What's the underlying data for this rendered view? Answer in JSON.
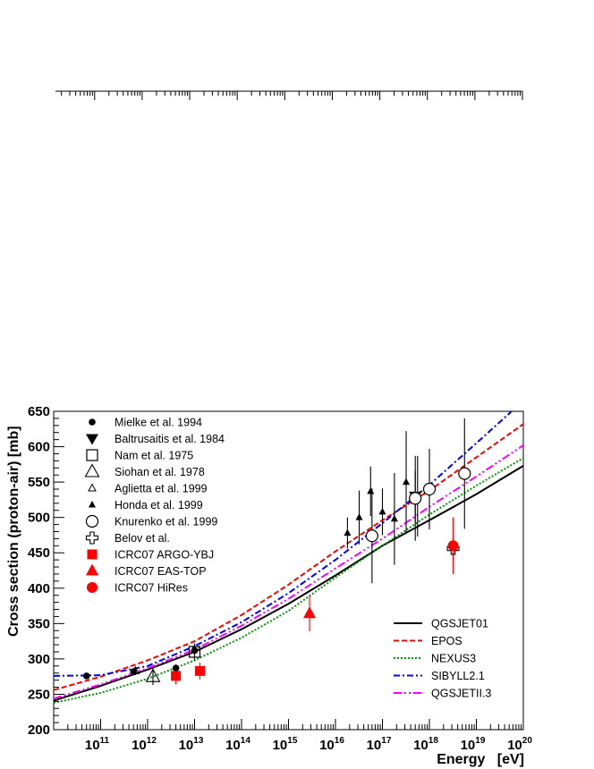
{
  "chart_data": {
    "type": "scatter",
    "title": "",
    "xlabel": "Energy   [eV]",
    "ylabel": "Cross section (proton-air)   [mb]",
    "x_scale": "log",
    "xlim": [
      10000000000.0,
      1e+20
    ],
    "ylim": [
      200,
      650
    ],
    "y_ticks": [
      200,
      250,
      300,
      350,
      400,
      450,
      500,
      550,
      600,
      650
    ],
    "x_ticks": [
      {
        "base": "10",
        "exp": "11",
        "value": 100000000000.0
      },
      {
        "base": "10",
        "exp": "12",
        "value": 1000000000000.0
      },
      {
        "base": "10",
        "exp": "13",
        "value": 10000000000000.0
      },
      {
        "base": "10",
        "exp": "14",
        "value": 100000000000000.0
      },
      {
        "base": "10",
        "exp": "15",
        "value": 1000000000000000.0
      },
      {
        "base": "10",
        "exp": "16",
        "value": 1e+16
      },
      {
        "base": "10",
        "exp": "17",
        "value": 1e+17
      },
      {
        "base": "10",
        "exp": "18",
        "value": 1e+18
      },
      {
        "base": "10",
        "exp": "19",
        "value": 1e+19
      },
      {
        "base": "10",
        "exp": "20",
        "value": 1e+20
      }
    ],
    "grid": false,
    "data_series": [
      {
        "name": "Mielke et al. 1994",
        "marker": "circle-filled-small",
        "color": "#000000",
        "points": [
          {
            "x": 50000000000.0,
            "y": 276,
            "err": 3
          },
          {
            "x": 500000000000.0,
            "y": 282,
            "err": 4
          },
          {
            "x": 4000000000000.0,
            "y": 287,
            "err": 5
          },
          {
            "x": 10000000000000.0,
            "y": 312,
            "err": 10
          }
        ]
      },
      {
        "name": "Baltrusaitis et al. 1984",
        "marker": "triangle-down-filled",
        "color": "#000000",
        "points": [
          {
            "x": 5e+17,
            "y": 530,
            "err": 36
          }
        ]
      },
      {
        "name": "Nam et al. 1975",
        "marker": "square-open",
        "color": "#000000",
        "points": [
          {
            "x": 10000000000000.0,
            "y": 310,
            "err": 12
          }
        ]
      },
      {
        "name": "Siohan et al. 1978",
        "marker": "triangle-open-large",
        "color": "#000000",
        "points": [
          {
            "x": 1300000000000.0,
            "y": 275,
            "err": 12
          }
        ]
      },
      {
        "name": "Aglietta et al. 1999",
        "marker": "triangle-open-small",
        "color": "#000000",
        "points": [
          {
            "x": 550000000000.0,
            "y": 283,
            "err": 6
          }
        ]
      },
      {
        "name": "Honda et al. 1999",
        "marker": "triangle-filled-small",
        "color": "#000000",
        "points": [
          {
            "x": 1.8e+16,
            "y": 478,
            "err": 22
          },
          {
            "x": 3.2e+16,
            "y": 500,
            "err": 38
          },
          {
            "x": 5.6e+16,
            "y": 537,
            "err": 35
          },
          {
            "x": 1e+17,
            "y": 508,
            "err": 33
          },
          {
            "x": 1.8e+17,
            "y": 498,
            "err": 65
          },
          {
            "x": 3.2e+17,
            "y": 550,
            "err": 72
          },
          {
            "x": 5.6e+17,
            "y": 530,
            "err": 57
          }
        ]
      },
      {
        "name": "Knurenko et al. 1999",
        "marker": "circle-open",
        "color": "#000000",
        "points": [
          {
            "x": 6e+16,
            "y": 474,
            "err": 67
          },
          {
            "x": 5e+17,
            "y": 527,
            "err": 60
          },
          {
            "x": 1e+18,
            "y": 540,
            "err": 57
          },
          {
            "x": 5.6e+18,
            "y": 562,
            "err": 78
          }
        ]
      },
      {
        "name": "Belov et al.",
        "marker": "cross-open",
        "color": "#000000",
        "points": [
          {
            "x": 3.2e+18,
            "y": 456,
            "err": 20
          }
        ]
      },
      {
        "name": "ICRC07 ARGO-YBJ",
        "marker": "square-filled",
        "color": "#ff0000",
        "points": [
          {
            "x": 4000000000000.0,
            "y": 276,
            "err": 12
          },
          {
            "x": 13000000000000.0,
            "y": 283,
            "err": 12
          }
        ]
      },
      {
        "name": "ICRC07 EAS-TOP",
        "marker": "triangle-filled",
        "color": "#ff0000",
        "points": [
          {
            "x": 2800000000000000.0,
            "y": 364,
            "err": 25
          }
        ]
      },
      {
        "name": "ICRC07 HiRes",
        "marker": "circle-filled",
        "color": "#ff0000",
        "points": [
          {
            "x": 3.2e+18,
            "y": 460,
            "err": 40
          }
        ]
      }
    ],
    "model_curves": [
      {
        "name": "QGSJET01",
        "color": "#000000",
        "dash": "solid",
        "points": [
          [
            10000000000.0,
            241
          ],
          [
            100000000000.0,
            262
          ],
          [
            1000000000000.0,
            285
          ],
          [
            10000000000000.0,
            310
          ],
          [
            100000000000000.0,
            342
          ],
          [
            1000000000000000.0,
            378
          ],
          [
            1e+16,
            418
          ],
          [
            1e+17,
            460
          ],
          [
            1e+18,
            496
          ],
          [
            1e+19,
            533
          ],
          [
            1e+20,
            573
          ]
        ]
      },
      {
        "name": "EPOS",
        "color": "#ff0000",
        "dash": "dashed",
        "points": [
          [
            10000000000.0,
            256
          ],
          [
            100000000000.0,
            275
          ],
          [
            1000000000000.0,
            298
          ],
          [
            10000000000000.0,
            325
          ],
          [
            100000000000000.0,
            362
          ],
          [
            1000000000000000.0,
            405
          ],
          [
            1e+16,
            452
          ],
          [
            1e+17,
            496
          ],
          [
            1e+18,
            538
          ],
          [
            1e+19,
            585
          ],
          [
            1e+20,
            632
          ]
        ]
      },
      {
        "name": "NEXUS3",
        "color": "#009900",
        "dash": "dotted",
        "points": [
          [
            10000000000.0,
            238
          ],
          [
            100000000000.0,
            252
          ],
          [
            1000000000000.0,
            272
          ],
          [
            10000000000000.0,
            298
          ],
          [
            100000000000000.0,
            330
          ],
          [
            1000000000000000.0,
            368
          ],
          [
            1e+16,
            415
          ],
          [
            1e+17,
            460
          ],
          [
            1e+18,
            504
          ],
          [
            1e+19,
            545
          ],
          [
            1e+20,
            584
          ]
        ]
      },
      {
        "name": "SIBYLL2.1",
        "color": "#0000ff",
        "dash": "dashdot",
        "points": [
          [
            10000000000.0,
            276
          ],
          [
            100000000000.0,
            277
          ],
          [
            1000000000000.0,
            290
          ],
          [
            10000000000000.0,
            318
          ],
          [
            100000000000000.0,
            352
          ],
          [
            1000000000000000.0,
            393
          ],
          [
            1e+16,
            440
          ],
          [
            1e+17,
            492
          ],
          [
            1e+18,
            546
          ],
          [
            1e+19,
            605
          ],
          [
            1e+20,
            665
          ]
        ]
      },
      {
        "name": "QGSJETII.3",
        "color": "#ff00ff",
        "dash": "dashdotdot",
        "points": [
          [
            10000000000.0,
            244
          ],
          [
            100000000000.0,
            264
          ],
          [
            1000000000000.0,
            287
          ],
          [
            10000000000000.0,
            313
          ],
          [
            100000000000000.0,
            347
          ],
          [
            1000000000000000.0,
            385
          ],
          [
            1e+16,
            428
          ],
          [
            1e+17,
            470
          ],
          [
            1e+18,
            515
          ],
          [
            1e+19,
            558
          ],
          [
            1e+20,
            602
          ]
        ]
      }
    ]
  }
}
